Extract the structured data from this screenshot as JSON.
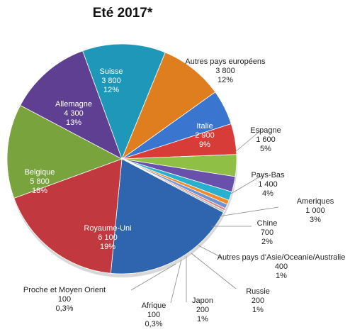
{
  "chart_data": {
    "type": "pie",
    "title": "Eté 2017*",
    "slices": [
      {
        "label": "Autres pays européens",
        "value": 3800,
        "value_label": "3 800",
        "percent_label": "12%",
        "color": "#1f97b8"
      },
      {
        "label": "Italie",
        "value": 2900,
        "value_label": "2 900",
        "percent_label": "9%",
        "color": "#df7e1f"
      },
      {
        "label": "Espagne",
        "value": 1600,
        "value_label": "1 600",
        "percent_label": "5%",
        "color": "#3a76cf"
      },
      {
        "label": "Pays-Bas",
        "value": 1400,
        "value_label": "1 400",
        "percent_label": "4%",
        "color": "#d83c38"
      },
      {
        "label": "Ameriques",
        "value": 1000,
        "value_label": "1 000",
        "percent_label": "3%",
        "color": "#8fbf45"
      },
      {
        "label": "Chine",
        "value": 700,
        "value_label": "700",
        "percent_label": "2%",
        "color": "#6950aa"
      },
      {
        "label": "Autres pays d'Asie/Oceanie/Australie",
        "value": 400,
        "value_label": "400",
        "percent_label": "1%",
        "color": "#28b0cf"
      },
      {
        "label": "Russie",
        "value": 200,
        "value_label": "200",
        "percent_label": "1%",
        "color": "#f08b2d"
      },
      {
        "label": "Japon",
        "value": 200,
        "value_label": "200",
        "percent_label": "1%",
        "color": "#6d95d2"
      },
      {
        "label": "Afrique",
        "value": 100,
        "value_label": "100",
        "percent_label": "0,3%",
        "color": "#e17a73"
      },
      {
        "label": "Proche et Moyen Orient",
        "value": 100,
        "value_label": "100",
        "percent_label": "0,3%",
        "color": "#b9b9b9"
      },
      {
        "label": "Royaume-Uni",
        "value": 6100,
        "value_label": "6 100",
        "percent_label": "19%",
        "color": "#2f64ae"
      },
      {
        "label": "Belgique",
        "value": 5800,
        "value_label": "5 800",
        "percent_label": "18%",
        "color": "#c1383e"
      },
      {
        "label": "Allemagne",
        "value": 4300,
        "value_label": "4 300",
        "percent_label": "13%",
        "color": "#78a33d"
      },
      {
        "label": "Suisse",
        "value": 3800,
        "value_label": "3 800",
        "percent_label": "12%",
        "color": "#5e3f92"
      }
    ]
  }
}
